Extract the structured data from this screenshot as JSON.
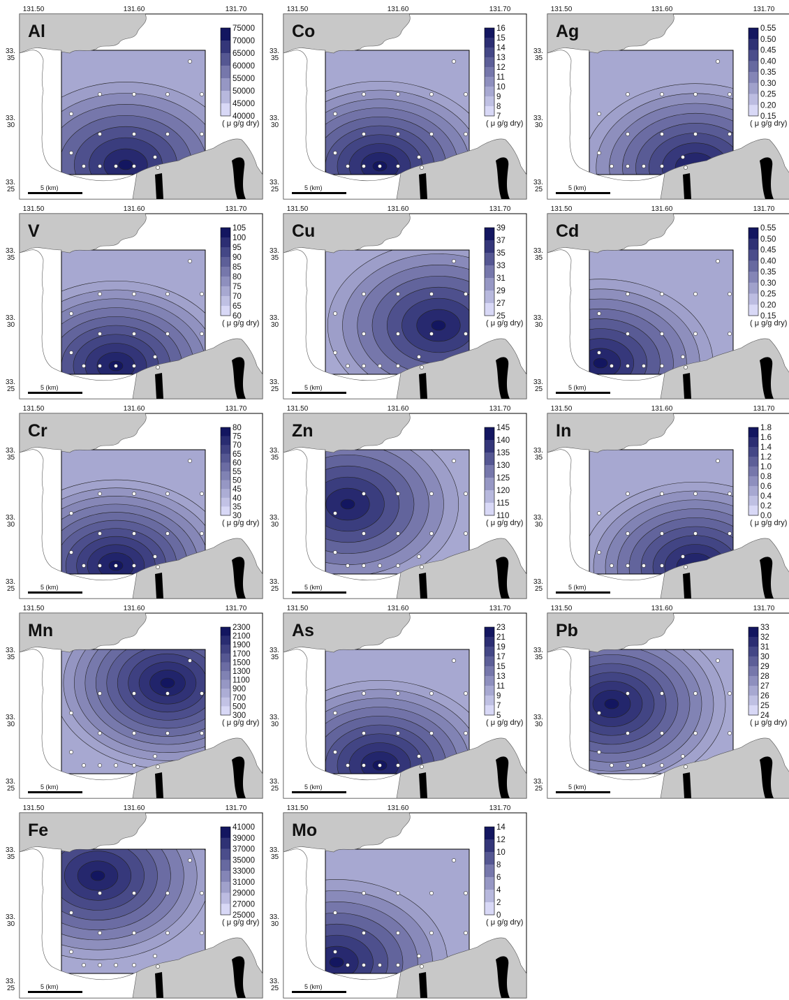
{
  "axes": {
    "lon_labels": [
      "131.50",
      "131.60",
      "131.70"
    ],
    "lat_labels": [
      [
        "33.",
        "35"
      ],
      [
        "33.",
        "30"
      ],
      [
        "33.",
        "25"
      ]
    ]
  },
  "scale_bar_label": "5 (km)",
  "unit_label": "( μ g/g dry)",
  "colors": {
    "land": "#c8c8c8",
    "water": "#ffffff",
    "ramp_light": "#d8d8f6",
    "ramp_dark": "#131660",
    "station": "#ffffff",
    "black_structure": "#000000"
  },
  "panels": [
    {
      "title": "Al",
      "legend": [
        "75000",
        "70000",
        "65000",
        "60000",
        "55000",
        "50000",
        "45000",
        "40000"
      ],
      "dark": "north",
      "hotspot": "south-center-light"
    },
    {
      "title": "Co",
      "legend": [
        "16",
        "15",
        "14",
        "13",
        "12",
        "11",
        "10",
        "9",
        "8",
        "7"
      ],
      "dark": "south-center",
      "hotspot": "south-center"
    },
    {
      "title": "Ag",
      "legend": [
        "0.55",
        "0.50",
        "0.45",
        "0.40",
        "0.35",
        "0.30",
        "0.25",
        "0.20",
        "0.15"
      ],
      "dark": "south",
      "hotspot": "south-east"
    },
    {
      "title": "V",
      "legend": [
        "105",
        "100",
        "95",
        "90",
        "85",
        "80",
        "75",
        "70",
        "65",
        "60"
      ],
      "dark": "south-center",
      "hotspot": "south-center"
    },
    {
      "title": "Cu",
      "legend": [
        "39",
        "37",
        "35",
        "33",
        "31",
        "29",
        "27",
        "25"
      ],
      "dark": "south",
      "hotspot": "west-east"
    },
    {
      "title": "Cd",
      "legend": [
        "0.55",
        "0.50",
        "0.45",
        "0.40",
        "0.35",
        "0.30",
        "0.25",
        "0.20",
        "0.15"
      ],
      "dark": "south-west",
      "hotspot": "south-west"
    },
    {
      "title": "Cr",
      "legend": [
        "80",
        "75",
        "70",
        "65",
        "60",
        "55",
        "50",
        "45",
        "40",
        "35",
        "30"
      ],
      "dark": "south-center",
      "hotspot": "south-center"
    },
    {
      "title": "Zn",
      "legend": [
        "145",
        "140",
        "135",
        "130",
        "125",
        "120",
        "115",
        "110"
      ],
      "dark": "west",
      "hotspot": "west"
    },
    {
      "title": "In",
      "legend": [
        "1.8",
        "1.6",
        "1.4",
        "1.2",
        "1.0",
        "0.8",
        "0.6",
        "0.4",
        "0.2",
        "0.0"
      ],
      "dark": "south-east",
      "hotspot": "south-east"
    },
    {
      "title": "Mn",
      "legend": [
        "2300",
        "2100",
        "1900",
        "1700",
        "1500",
        "1300",
        "1100",
        "900",
        "700",
        "500",
        "300"
      ],
      "dark": "north-east",
      "hotspot": "north-east"
    },
    {
      "title": "As",
      "legend": [
        "23",
        "21",
        "19",
        "17",
        "15",
        "13",
        "11",
        "9",
        "7",
        "5"
      ],
      "dark": "south-center",
      "hotspot": "south-center"
    },
    {
      "title": "Pb",
      "legend": [
        "33",
        "32",
        "31",
        "30",
        "29",
        "28",
        "27",
        "26",
        "25",
        "24"
      ],
      "dark": "west",
      "hotspot": "west"
    },
    {
      "title": "Fe",
      "legend": [
        "41000",
        "39000",
        "37000",
        "35000",
        "33000",
        "31000",
        "29000",
        "27000",
        "25000"
      ],
      "dark": "south-center",
      "hotspot": "north-west"
    },
    {
      "title": "Mo",
      "legend": [
        "14",
        "12",
        "10",
        "8",
        "6",
        "4",
        "2",
        "0"
      ],
      "dark": "south-west",
      "hotspot": "south-west"
    }
  ]
}
